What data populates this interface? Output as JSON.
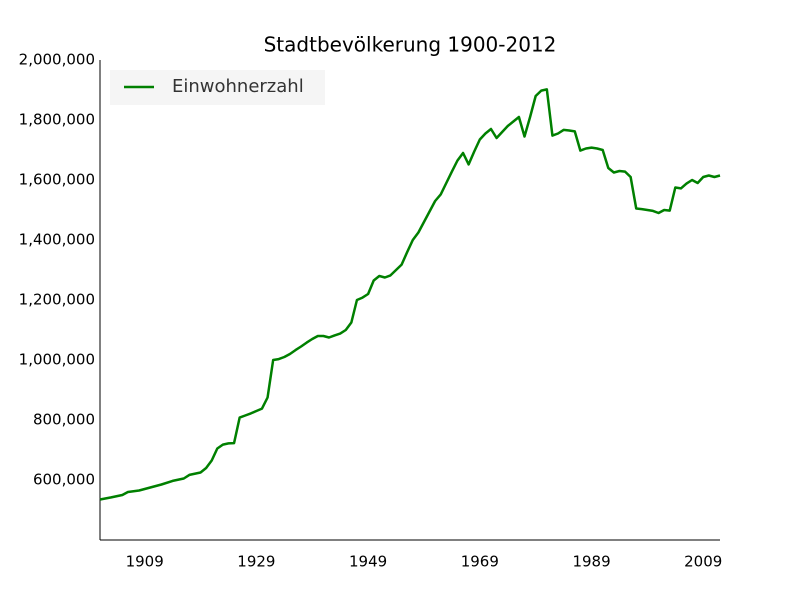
{
  "chart_data": {
    "type": "line",
    "title": "Stadtbevölkerung 1900-2012",
    "x": [
      1901,
      1903,
      1905,
      1906,
      1908,
      1910,
      1912,
      1914,
      1916,
      1917,
      1919,
      1920,
      1921,
      1922,
      1923,
      1924,
      1925,
      1926,
      1927,
      1928,
      1929,
      1930,
      1931,
      1932,
      1933,
      1934,
      1935,
      1936,
      1937,
      1938,
      1939,
      1940,
      1941,
      1942,
      1943,
      1944,
      1945,
      1946,
      1947,
      1948,
      1949,
      1950,
      1951,
      1952,
      1953,
      1954,
      1955,
      1956,
      1957,
      1958,
      1959,
      1960,
      1961,
      1962,
      1963,
      1964,
      1965,
      1966,
      1967,
      1968,
      1969,
      1970,
      1971,
      1972,
      1973,
      1974,
      1975,
      1976,
      1977,
      1978,
      1979,
      1980,
      1981,
      1982,
      1983,
      1984,
      1985,
      1986,
      1987,
      1988,
      1989,
      1990,
      1991,
      1992,
      1993,
      1994,
      1995,
      1996,
      1997,
      1998,
      1999,
      2000,
      2001,
      2002,
      2003,
      2004,
      2005,
      2006,
      2007,
      2008,
      2009,
      2010,
      2011,
      2012
    ],
    "series": [
      {
        "name": "Einwohnerzahl",
        "color": "#008000",
        "values": [
          535000,
          542000,
          550000,
          560000,
          565000,
          575000,
          585000,
          597000,
          605000,
          617000,
          625000,
          640000,
          665000,
          705000,
          718000,
          722000,
          723000,
          808000,
          815000,
          822000,
          830000,
          838000,
          875000,
          1000000,
          1003000,
          1010000,
          1020000,
          1033000,
          1045000,
          1058000,
          1070000,
          1080000,
          1080000,
          1075000,
          1082000,
          1088000,
          1100000,
          1125000,
          1200000,
          1208000,
          1220000,
          1265000,
          1280000,
          1275000,
          1282000,
          1300000,
          1318000,
          1360000,
          1400000,
          1425000,
          1460000,
          1495000,
          1530000,
          1552000,
          1590000,
          1628000,
          1665000,
          1690000,
          1652000,
          1695000,
          1735000,
          1755000,
          1770000,
          1740000,
          1760000,
          1780000,
          1795000,
          1810000,
          1745000,
          1810000,
          1880000,
          1898000,
          1902000,
          1748000,
          1755000,
          1767000,
          1765000,
          1762000,
          1698000,
          1705000,
          1708000,
          1705000,
          1700000,
          1640000,
          1625000,
          1630000,
          1628000,
          1610000,
          1505000,
          1503000,
          1500000,
          1497000,
          1490000,
          1500000,
          1498000,
          1575000,
          1572000,
          1588000,
          1600000,
          1590000,
          1610000,
          1615000,
          1610000,
          1615000
        ]
      }
    ],
    "xlim": [
      1901,
      2012
    ],
    "xticks": [
      1909,
      1929,
      1949,
      1969,
      1989,
      2009
    ],
    "ylim": [
      400000,
      2000000
    ],
    "yticks": [
      {
        "value": 600000,
        "label": "600,000"
      },
      {
        "value": 800000,
        "label": "800,000"
      },
      {
        "value": 1000000,
        "label": "1,000,000"
      },
      {
        "value": 1200000,
        "label": "1,200,000"
      },
      {
        "value": 1400000,
        "label": "1,400,000"
      },
      {
        "value": 1600000,
        "label": "1,600,000"
      },
      {
        "value": 1800000,
        "label": "1,800,000"
      },
      {
        "value": 2000000,
        "label": "2,000,000"
      }
    ],
    "legend": "upper-left",
    "grid": false
  }
}
